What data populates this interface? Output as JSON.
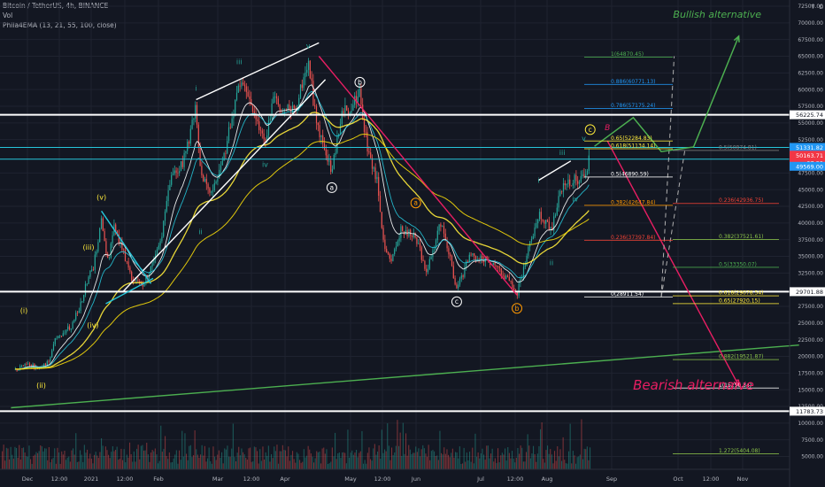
{
  "header": {
    "symbol_line": "Bitcoin / TetherUS, 4h, BINANCE",
    "volume_label": "Vol",
    "indicator_line": "Phila4EMA (13, 21, 55, 100, close)"
  },
  "chart_data": {
    "type": "candlestick",
    "symbol": "Bitcoin / TetherUS",
    "interval": "4h",
    "exchange": "BINANCE",
    "currency": "USDT",
    "indicator": "Phila4EMA (13, 21, 55, 100, close)",
    "grid": true,
    "price_scale": {
      "min": 5000,
      "max": 72500,
      "ticks": [
        "72500.00",
        "70000.00",
        "67500.00",
        "65000.00",
        "62500.00",
        "60000.00",
        "57500.00",
        "55000.00",
        "52500.00",
        "47500.00",
        "45000.00",
        "42500.00",
        "40000.00",
        "37500.00",
        "35000.00",
        "32500.00",
        "30000.00",
        "27500.00",
        "25000.00",
        "22500.00",
        "20000.00",
        "17500.00",
        "15000.00",
        "12500.00",
        "10000.00",
        "7500.00",
        "5000.00"
      ]
    },
    "time_axis": [
      "Dec",
      "12:00",
      "2021",
      "12:00",
      "Feb",
      "Mar",
      "12:00",
      "Apr",
      "May",
      "12:00",
      "Jun",
      "Jul",
      "12:00",
      "Aug",
      "Sep",
      "Oct",
      "12:00",
      "Nov"
    ],
    "price_series": {
      "name": "BTCUSDT 4h close (approx.)",
      "points": [
        [
          "Nov 29, 2020",
          17800
        ],
        [
          "Dec 5, 2020",
          18800
        ],
        [
          "Dec 10, 2020",
          18300
        ],
        [
          "Dec 15, 2020",
          19400
        ],
        [
          "Dec 17, 2020",
          22500
        ],
        [
          "Dec 21, 2020",
          23500
        ],
        [
          "Dec 25, 2020",
          24500
        ],
        [
          "Dec 29, 2020",
          27500
        ],
        [
          "Jan 2, 2021",
          32000
        ],
        [
          "Jan 4, 2021",
          33000
        ],
        [
          "Jan 8, 2021",
          40500
        ],
        [
          "Jan 11, 2021",
          34000
        ],
        [
          "Jan 14, 2021",
          39500
        ],
        [
          "Jan 18, 2021",
          36000
        ],
        [
          "Jan 22, 2021",
          31500
        ],
        [
          "Jan 27, 2021",
          30500
        ],
        [
          "Feb 1, 2021",
          34000
        ],
        [
          "Feb 5, 2021",
          38000
        ],
        [
          "Feb 9, 2021",
          46500
        ],
        [
          "Feb 15, 2021",
          49000
        ],
        [
          "Feb 21, 2021",
          57500
        ],
        [
          "Feb 23, 2021",
          47000
        ],
        [
          "Feb 28, 2021",
          45000
        ],
        [
          "Mar 5, 2021",
          48500
        ],
        [
          "Mar 13, 2021",
          61000
        ],
        [
          "Mar 18, 2021",
          58000
        ],
        [
          "Mar 25, 2021",
          52000
        ],
        [
          "Mar 29, 2021",
          58500
        ],
        [
          "Apr 3, 2021",
          57500
        ],
        [
          "Apr 8, 2021",
          57000
        ],
        [
          "Apr 14, 2021",
          64000
        ],
        [
          "Apr 18, 2021",
          55000
        ],
        [
          "Apr 22, 2021",
          51000
        ],
        [
          "Apr 25, 2021",
          47500
        ],
        [
          "Apr 30, 2021",
          57000
        ],
        [
          "May 3, 2021",
          57000
        ],
        [
          "May 8, 2021",
          59500
        ],
        [
          "May 12, 2021",
          50000
        ],
        [
          "May 16, 2021",
          46500
        ],
        [
          "May 19, 2021",
          37000
        ],
        [
          "May 23, 2021",
          34500
        ],
        [
          "May 27, 2021",
          39000
        ],
        [
          "Jun 3, 2021",
          38000
        ],
        [
          "Jun 8, 2021",
          32500
        ],
        [
          "Jun 15, 2021",
          40500
        ],
        [
          "Jun 22, 2021",
          30000
        ],
        [
          "Jun 28, 2021",
          35000
        ],
        [
          "Jul 5, 2021",
          34500
        ],
        [
          "Jul 12, 2021",
          33000
        ],
        [
          "Jul 20, 2021",
          29500
        ],
        [
          "Jul 25, 2021",
          35500
        ],
        [
          "Jul 30, 2021",
          41500
        ],
        [
          "Aug 5, 2021",
          39000
        ],
        [
          "Aug 10, 2021",
          45500
        ],
        [
          "Aug 16, 2021",
          46500
        ],
        [
          "Aug 20, 2021",
          47000
        ],
        [
          "Aug 23, 2021",
          50000
        ]
      ]
    },
    "last_price": "50163.71",
    "countdown": "07:29",
    "price_labels": [
      {
        "text": "56225.74",
        "color": "#ffffff",
        "y": 56226
      },
      {
        "text": "51331.82",
        "color": "#2196f3",
        "y": 51332
      },
      {
        "text": "50163.71",
        "color": "#f23645",
        "y": 50164
      },
      {
        "text": "07:29",
        "color": "#f23645",
        "y": 49000
      },
      {
        "text": "49569.00",
        "color": "#2196f3",
        "y": 48500
      },
      {
        "text": "29701.88",
        "color": "#ffffff",
        "y": 29702
      },
      {
        "text": "11783.73",
        "color": "#ffffff",
        "y": 11784
      }
    ],
    "horizontal_levels": [
      {
        "price": 56225.74,
        "color": "#ffffff"
      },
      {
        "price": 51331.82,
        "color": "#26c6da"
      },
      {
        "price": 49569.0,
        "color": "#26c6da"
      },
      {
        "price": 29701.88,
        "color": "#ffffff"
      },
      {
        "price": 11783.73,
        "color": "#ffffff"
      }
    ],
    "fib_levels": [
      {
        "ratio": "1",
        "price": "64870.45",
        "label": "1(64870.45)",
        "color": "#4caf50",
        "x": [
          660,
          760
        ]
      },
      {
        "ratio": "0.886",
        "price": "60771.13",
        "label": "0.886(60771.13)",
        "color": "#2196f3",
        "x": [
          660,
          760
        ]
      },
      {
        "ratio": "0.786",
        "price": "57175.24",
        "label": "0.786(57175.24)",
        "color": "#2196f3",
        "x": [
          660,
          760
        ]
      },
      {
        "ratio": "0.65",
        "price": "52284.83",
        "label": "0.65(52284.83)",
        "color": "#ffeb3b",
        "x": [
          660,
          760
        ]
      },
      {
        "ratio": "0.618",
        "price": "51134.14",
        "label": "0.618(51134.14)",
        "color": "#ffeb3b",
        "x": [
          660,
          760
        ]
      },
      {
        "ratio": "0.5",
        "price": "46890.59",
        "label": "0.5(46890.59)",
        "color": "#ffffff",
        "x": [
          660,
          760
        ]
      },
      {
        "ratio": "0.382",
        "price": "42647.84",
        "label": "0.382(42647.84)",
        "color": "#ff9800",
        "x": [
          660,
          760
        ]
      },
      {
        "ratio": "0.236",
        "price": "37397.84",
        "label": "0.236(37397.84)",
        "color": "#f44336",
        "x": [
          660,
          760
        ]
      },
      {
        "ratio": "0",
        "price": "28911.54",
        "label": "0(28911.54)",
        "color": "#ffffff",
        "x": [
          660,
          760
        ]
      },
      {
        "ratio": "0.5",
        "price": "50874.81",
        "label": "0.5(50874.81)",
        "color": "#808080",
        "x": [
          760,
          880
        ]
      },
      {
        "ratio": "0.236",
        "price": "42936.75",
        "label": "0.236(42936.75)",
        "color": "#f44336",
        "x": [
          760,
          880
        ]
      },
      {
        "ratio": "0.382",
        "price": "37521.61",
        "label": "0.382(37521.61)",
        "color": "#8bc34a",
        "x": [
          760,
          880
        ]
      },
      {
        "ratio": "0.5",
        "price": "33350.07",
        "label": "0.5(33350.07)",
        "color": "#4caf50",
        "x": [
          760,
          880
        ]
      },
      {
        "ratio": "0.618",
        "price": "29078.54",
        "label": "0.618(29078.54)",
        "color": "#ffeb3b",
        "x": [
          760,
          880
        ]
      },
      {
        "ratio": "0.65",
        "price": "27920.15",
        "label": "0.65(27920.15)",
        "color": "#ffeb3b",
        "x": [
          760,
          880
        ]
      },
      {
        "ratio": "0.882",
        "price": "19521.87",
        "label": "0.882(19521.87)",
        "color": "#8bc34a",
        "x": [
          760,
          880
        ]
      },
      {
        "ratio": "1",
        "price": "15250.34",
        "label": "1(15250.34)",
        "color": "#ffffff",
        "x": [
          760,
          880
        ]
      },
      {
        "ratio": "1.272",
        "price": "5404.08",
        "label": "1.272(5404.08)",
        "color": "#8bc34a",
        "x": [
          760,
          880
        ]
      }
    ],
    "wave_labels": [
      {
        "text": "(i)",
        "date": "Dec 3, 2020",
        "price": 26500,
        "color": "#ffeb3b"
      },
      {
        "text": "(ii)",
        "date": "Dec 11, 2020",
        "price": 15300,
        "color": "#ffeb3b"
      },
      {
        "text": "(iii)",
        "date": "Jan 2, 2021",
        "price": 36000,
        "color": "#ffeb3b"
      },
      {
        "text": "(iv)",
        "date": "Jan 4, 2021",
        "price": 24300,
        "color": "#ffeb3b"
      },
      {
        "text": "(v)",
        "date": "Jan 8, 2021",
        "price": 43500,
        "color": "#ffeb3b"
      },
      {
        "text": "i",
        "date": "Feb 21, 2021",
        "price": 59800,
        "color": "#26a69a"
      },
      {
        "text": "ii",
        "date": "Feb 23, 2021",
        "price": 38300,
        "color": "#26a69a"
      },
      {
        "text": "iii",
        "date": "Mar 13, 2021",
        "price": 63800,
        "color": "#26a69a"
      },
      {
        "text": "iv",
        "date": "Mar 25, 2021",
        "price": 48400,
        "color": "#26a69a"
      },
      {
        "text": "v",
        "date": "Apr 14, 2021",
        "price": 66200,
        "color": "#26a69a"
      },
      {
        "text": "i",
        "date": "Jul 30, 2021",
        "price": 46000,
        "color": "#26a69a"
      },
      {
        "text": "ii",
        "date": "Aug 5, 2021",
        "price": 33700,
        "color": "#26a69a"
      },
      {
        "text": "iii",
        "date": "Aug 10, 2021",
        "price": 50200,
        "color": "#26a69a"
      },
      {
        "text": "iv",
        "date": "Aug 16, 2021",
        "price": 43200,
        "color": "#26a69a"
      },
      {
        "text": "v",
        "date": "Aug 20, 2021",
        "price": 52300,
        "color": "#26a69a"
      }
    ],
    "circled_labels": [
      {
        "text": "a",
        "date": "Apr 25, 2021",
        "price": 45300,
        "color": "#ffffff"
      },
      {
        "text": "b",
        "date": "May 8, 2021",
        "price": 61100,
        "color": "#ffffff"
      },
      {
        "text": "c",
        "date": "Jun 22, 2021",
        "price": 28200,
        "color": "#ffffff"
      },
      {
        "text": "a",
        "date": "Jun 3, 2021",
        "price": 43000,
        "color": "#ff9800"
      },
      {
        "text": "b",
        "date": "Jul 20, 2021",
        "price": 27200,
        "color": "#ff9800"
      },
      {
        "text": "c",
        "date": "Aug 23, 2021",
        "price": 54000,
        "color": "#ffeb3b"
      }
    ],
    "annotations": [
      {
        "text": "Bullish alternative",
        "color": "#4caf50",
        "date": "Oct 21, 2021",
        "price": 70800
      },
      {
        "text": "Bearish alternaive",
        "color": "#e91e63",
        "date": "Oct 10, 2021",
        "price": 15000
      },
      {
        "text": "B",
        "color": "#e91e63",
        "date": "Aug 31, 2021",
        "price": 53900
      }
    ],
    "trend_lines": [
      {
        "color": "#ffffff",
        "points": [
          [
            "Feb 21, 2021",
            58500
          ],
          [
            "Apr 19, 2021",
            67000
          ]
        ]
      },
      {
        "color": "#ffffff",
        "points": [
          [
            "Jan 18, 2021",
            29700
          ],
          [
            "Apr 22, 2021",
            61500
          ]
        ]
      },
      {
        "color": "#26c6da",
        "points": [
          [
            "Jan 8, 2021",
            41800
          ],
          [
            "Jan 31, 2021",
            30900
          ]
        ]
      },
      {
        "color": "#26c6da",
        "points": [
          [
            "Jan 10, 2021",
            27900
          ],
          [
            "Feb 1, 2021",
            31700
          ]
        ]
      },
      {
        "color": "#ffffff",
        "points": [
          [
            "Jul 30, 2021",
            46400
          ],
          [
            "Aug 14, 2021",
            49300
          ]
        ]
      },
      {
        "color": "#e91e63",
        "points": [
          [
            "Apr 19, 2021",
            65000
          ],
          [
            "Jul 20, 2021",
            29200
          ]
        ]
      },
      {
        "color": "#4caf50",
        "points": [
          [
            "Nov 27, 2020",
            12300
          ],
          [
            "Nov 28, 2021",
            21700
          ]
        ]
      },
      {
        "color": "#e91e63",
        "points": [
          [
            "Aug 31, 2021",
            52300
          ],
          [
            "Oct 31, 2021",
            15600
          ]
        ]
      }
    ],
    "projection_paths": [
      {
        "color": "#4caf50",
        "points": [
          [
            "Aug 25, 2021",
            51500
          ],
          [
            "Sep 12, 2021",
            55800
          ],
          [
            "Sep 25, 2021",
            50700
          ],
          [
            "Oct 10, 2021",
            51400
          ],
          [
            "Oct 31, 2021",
            68000
          ]
        ]
      }
    ],
    "dashed_lines": [
      {
        "color": "#b0b0b0",
        "points": [
          [
            "Sep 25, 2021",
            28900
          ],
          [
            "Oct 1, 2021",
            65000
          ]
        ]
      },
      {
        "color": "#b0b0b0",
        "points": [
          [
            "Sep 25, 2021",
            28900
          ],
          [
            "Oct 6, 2021",
            51000
          ]
        ]
      }
    ]
  }
}
